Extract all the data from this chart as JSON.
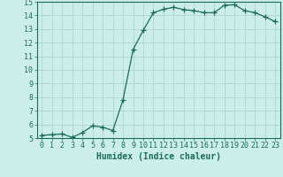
{
  "x": [
    0,
    1,
    2,
    3,
    4,
    5,
    6,
    7,
    8,
    9,
    10,
    11,
    12,
    13,
    14,
    15,
    16,
    17,
    18,
    19,
    20,
    21,
    22,
    23
  ],
  "y": [
    5.2,
    5.25,
    5.3,
    5.05,
    5.4,
    5.9,
    5.8,
    5.55,
    7.8,
    11.5,
    12.9,
    14.2,
    14.45,
    14.6,
    14.42,
    14.35,
    14.2,
    14.2,
    14.75,
    14.78,
    14.35,
    14.2,
    13.9,
    13.55
  ],
  "line_color": "#1a6b5a",
  "marker": "+",
  "marker_size": 4,
  "bg_color": "#cceee8",
  "grid_color": "#aacccc",
  "xlabel": "Humidex (Indice chaleur)",
  "xlabel_fontsize": 7,
  "tick_fontsize": 6,
  "ylim": [
    5,
    15
  ],
  "xlim": [
    -0.5,
    23.5
  ],
  "yticks": [
    5,
    6,
    7,
    8,
    9,
    10,
    11,
    12,
    13,
    14,
    15
  ],
  "xticks": [
    0,
    1,
    2,
    3,
    4,
    5,
    6,
    7,
    8,
    9,
    10,
    11,
    12,
    13,
    14,
    15,
    16,
    17,
    18,
    19,
    20,
    21,
    22,
    23
  ]
}
